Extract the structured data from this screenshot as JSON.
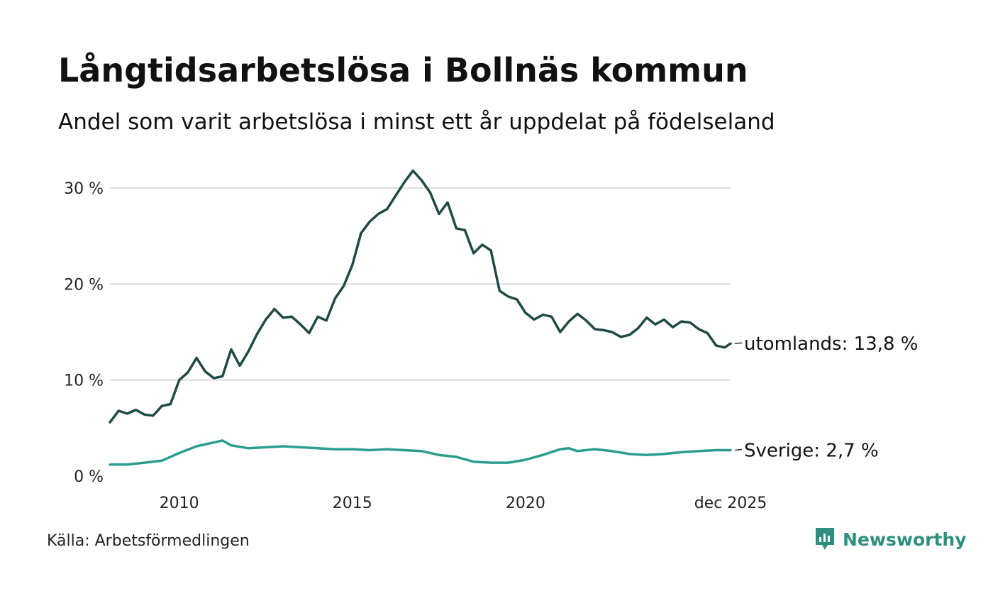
{
  "title": "Långtidsarbetslösa i Bollnäs kommun",
  "subtitle": "Andel som varit arbetslösa i minst ett år uppdelat på födelseland",
  "source": "Källa: Arbetsförmedlingen",
  "brand": "Newsworthy",
  "colors": {
    "utomlands": "#1f4a44",
    "sverige": "#2a9d8f",
    "grid": "#dddddd",
    "brand": "#2f8f7f"
  },
  "chart_data": {
    "type": "line",
    "title": "Långtidsarbetslösa i Bollnäs kommun",
    "xlabel": "",
    "ylabel": "",
    "ylim": [
      0,
      32
    ],
    "xlim": [
      2008.0,
      2025.92
    ],
    "yticks": [
      0,
      10,
      20,
      30
    ],
    "ytick_labels": [
      "0 %",
      "10 %",
      "20 %",
      "30 %"
    ],
    "xticks": [
      2010,
      2015,
      2020,
      2025.92
    ],
    "xtick_labels": [
      "2010",
      "2015",
      "2020",
      "dec 2025"
    ],
    "grid": true,
    "series": [
      {
        "name": "utomlands",
        "end_label": "utomlands: 13,8 %",
        "x": [
          2008.0,
          2008.25,
          2008.5,
          2008.75,
          2009.0,
          2009.25,
          2009.5,
          2009.75,
          2010.0,
          2010.25,
          2010.5,
          2010.75,
          2011.0,
          2011.25,
          2011.5,
          2011.75,
          2012.0,
          2012.25,
          2012.5,
          2012.75,
          2013.0,
          2013.25,
          2013.5,
          2013.75,
          2014.0,
          2014.25,
          2014.5,
          2014.75,
          2015.0,
          2015.25,
          2015.5,
          2015.75,
          2016.0,
          2016.25,
          2016.5,
          2016.75,
          2017.0,
          2017.25,
          2017.5,
          2017.75,
          2018.0,
          2018.25,
          2018.5,
          2018.75,
          2019.0,
          2019.25,
          2019.5,
          2019.75,
          2020.0,
          2020.25,
          2020.5,
          2020.75,
          2021.0,
          2021.25,
          2021.5,
          2021.75,
          2022.0,
          2022.25,
          2022.5,
          2022.75,
          2023.0,
          2023.25,
          2023.5,
          2023.75,
          2024.0,
          2024.25,
          2024.5,
          2024.75,
          2025.0,
          2025.25,
          2025.5,
          2025.75,
          2025.92
        ],
        "values": [
          5.6,
          6.8,
          6.5,
          6.9,
          6.4,
          6.3,
          7.3,
          7.5,
          10.0,
          10.8,
          12.3,
          10.9,
          10.2,
          10.4,
          13.2,
          11.5,
          13.0,
          14.8,
          16.3,
          17.4,
          16.5,
          16.6,
          15.8,
          14.9,
          16.6,
          16.2,
          18.5,
          19.8,
          22.0,
          25.3,
          26.5,
          27.3,
          27.8,
          29.2,
          30.6,
          31.8,
          30.8,
          29.5,
          27.3,
          28.5,
          25.8,
          25.6,
          23.2,
          24.1,
          23.5,
          19.3,
          18.7,
          18.4,
          17.0,
          16.3,
          16.8,
          16.6,
          15.0,
          16.1,
          16.9,
          16.2,
          15.3,
          15.2,
          15.0,
          14.5,
          14.7,
          15.4,
          16.5,
          15.8,
          16.3,
          15.5,
          16.1,
          16.0,
          15.3,
          14.9,
          13.6,
          13.4,
          13.8
        ]
      },
      {
        "name": "Sverige",
        "end_label": "Sverige:  2,7 %",
        "x": [
          2008.0,
          2008.5,
          2009.0,
          2009.5,
          2010.0,
          2010.5,
          2011.0,
          2011.25,
          2011.5,
          2012.0,
          2012.5,
          2013.0,
          2013.5,
          2014.0,
          2014.5,
          2015.0,
          2015.5,
          2016.0,
          2016.5,
          2017.0,
          2017.5,
          2018.0,
          2018.5,
          2019.0,
          2019.5,
          2020.0,
          2020.5,
          2021.0,
          2021.25,
          2021.5,
          2022.0,
          2022.5,
          2023.0,
          2023.5,
          2024.0,
          2024.5,
          2025.0,
          2025.5,
          2025.92
        ],
        "values": [
          1.2,
          1.2,
          1.4,
          1.6,
          2.4,
          3.1,
          3.5,
          3.7,
          3.2,
          2.9,
          3.0,
          3.1,
          3.0,
          2.9,
          2.8,
          2.8,
          2.7,
          2.8,
          2.7,
          2.6,
          2.2,
          2.0,
          1.5,
          1.4,
          1.4,
          1.7,
          2.2,
          2.8,
          2.9,
          2.6,
          2.8,
          2.6,
          2.3,
          2.2,
          2.3,
          2.5,
          2.6,
          2.7,
          2.7
        ]
      }
    ]
  }
}
